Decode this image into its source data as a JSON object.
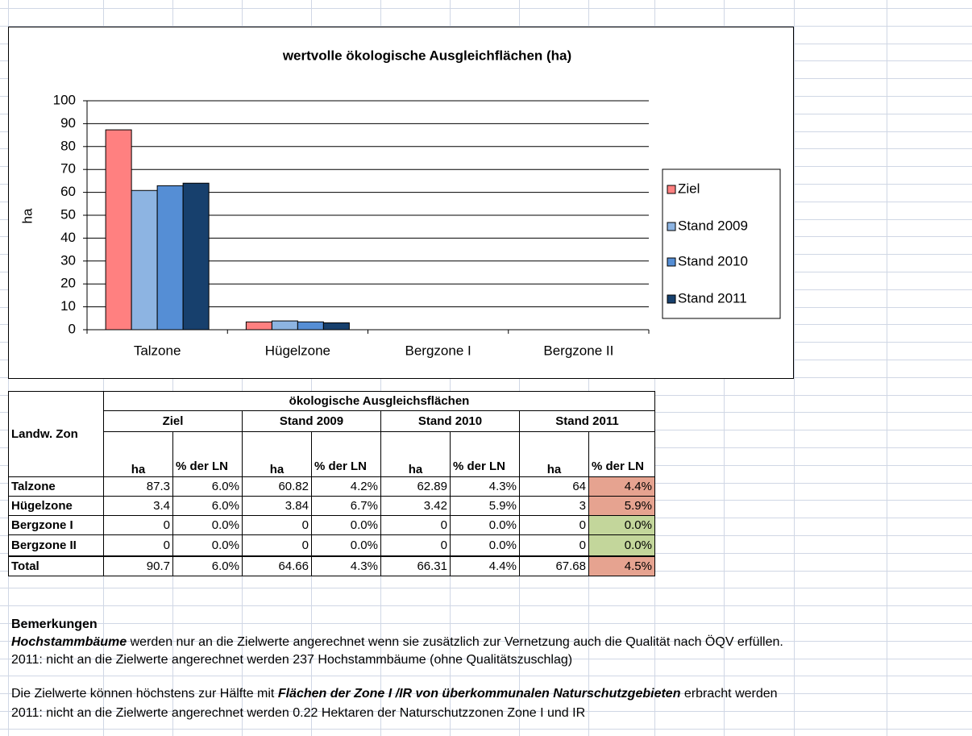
{
  "chart_data": {
    "type": "bar",
    "title": "wertvolle ökologische Ausgleichflächen (ha)",
    "y_label": "ha",
    "categories": [
      "Talzone",
      "Hügelzone",
      "Bergzone I",
      "Bergzone II"
    ],
    "series": [
      {
        "name": "Ziel",
        "color": "#ff8080",
        "values": [
          87.3,
          3.4,
          0,
          0
        ]
      },
      {
        "name": "Stand 2009",
        "color": "#8db4e2",
        "values": [
          60.82,
          3.84,
          0,
          0
        ]
      },
      {
        "name": "Stand 2010",
        "color": "#558ed5",
        "values": [
          62.89,
          3.42,
          0,
          0
        ]
      },
      {
        "name": "Stand 2011",
        "color": "#17406d",
        "values": [
          64,
          3,
          0,
          0
        ]
      }
    ],
    "ylim": [
      0,
      100
    ],
    "yticks": [
      0,
      10,
      20,
      30,
      40,
      50,
      60,
      70,
      80,
      90,
      100
    ],
    "grid": true,
    "legend": "right"
  },
  "table": {
    "title": "ökologische Ausgleichsflächen",
    "row_header": "Landw. Zon",
    "groups": [
      "Ziel",
      "Stand 2009",
      "Stand 2010",
      "Stand 2011"
    ],
    "subheaders": [
      "ha",
      "% der LN"
    ],
    "rows": [
      [
        "Talzone",
        "87.3",
        "6.0%",
        "60.82",
        "4.2%",
        "62.89",
        "4.3%",
        "64",
        "4.4%"
      ],
      [
        "Hügelzone",
        "3.4",
        "6.0%",
        "3.84",
        "6.7%",
        "3.42",
        "5.9%",
        "3",
        "5.9%"
      ],
      [
        "Bergzone I",
        "0",
        "0.0%",
        "0",
        "0.0%",
        "0",
        "0.0%",
        "0",
        "0.0%"
      ],
      [
        "Bergzone II",
        "0",
        "0.0%",
        "0",
        "0.0%",
        "0",
        "0.0%",
        "0",
        "0.0%"
      ],
      [
        "Total",
        "90.7",
        "6.0%",
        "64.66",
        "4.3%",
        "66.31",
        "4.4%",
        "67.68",
        "4.5%"
      ]
    ]
  },
  "notes": {
    "heading": "Bemerkungen",
    "items": [
      {
        "emphasis": "Hochstammbäume",
        "text": "werden nur an die Zielwerte angerechnet wenn sie zusätzlich zur Vernetzung auch die Qualität nach ÖQV erfüllen."
      },
      {
        "text": "2011: nicht an die Zielwerte angerechnet werden 237 Hochstammbäume (ohne Qualitätszuschlag)"
      },
      {
        "lead": "Die Zielwerte können höchstens zur Hälfte mit",
        "emphasis": "Flächen der Zone I /IR von überkommunalen Naturschutzgebieten",
        "text": "erbracht werden"
      },
      {
        "text": "2011: nicht an die Zielwerte angerechnet werden 0.22 Hektaren der Naturschutzzonen Zone I und IR"
      }
    ]
  }
}
